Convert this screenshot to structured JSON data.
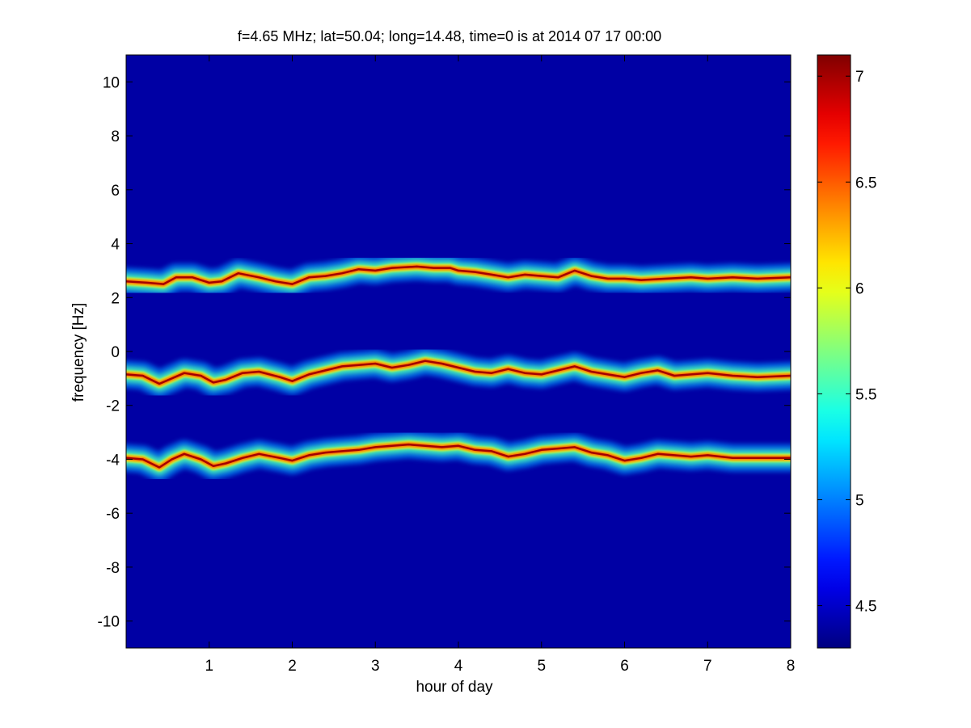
{
  "chart_data": {
    "type": "heatmap",
    "title": "f=4.65 MHz;  lat=50.04; long=14.48, time=0 is at 2014 07 17 00:00",
    "xlabel": "hour of day",
    "ylabel": "frequency [Hz]",
    "xlim": [
      0,
      8
    ],
    "ylim": [
      -11,
      11
    ],
    "x_ticks": [
      1,
      2,
      3,
      4,
      5,
      6,
      7,
      8
    ],
    "x_tick_labels": [
      "1",
      "2",
      "3",
      "4",
      "5",
      "6",
      "7",
      "8"
    ],
    "y_ticks": [
      10,
      8,
      6,
      4,
      2,
      0,
      -2,
      -4,
      -6,
      -8,
      -10
    ],
    "y_tick_labels": [
      "10",
      "8",
      "6",
      "4",
      "2",
      "0",
      "-2",
      "-4",
      "-6",
      "-8",
      "-10"
    ],
    "colorbar": {
      "colormap": "jet",
      "clim": [
        4.3,
        7.1
      ],
      "ticks": [
        7,
        6.5,
        6,
        5.5,
        5,
        4.5
      ],
      "tick_labels": [
        "7",
        "6.5",
        "6",
        "5.5",
        "5",
        "4.5"
      ]
    },
    "background_value": 4.4,
    "grid": false,
    "traces": [
      {
        "name": "",
        "points": [
          [
            0,
            2.6
          ],
          [
            0.25,
            2.55
          ],
          [
            0.45,
            2.5
          ],
          [
            0.6,
            2.75
          ],
          [
            0.8,
            2.75
          ],
          [
            1.0,
            2.55
          ],
          [
            1.15,
            2.6
          ],
          [
            1.35,
            2.9
          ],
          [
            1.6,
            2.75
          ],
          [
            1.8,
            2.6
          ],
          [
            2.0,
            2.5
          ],
          [
            2.2,
            2.75
          ],
          [
            2.4,
            2.8
          ],
          [
            2.6,
            2.9
          ],
          [
            2.8,
            3.05
          ],
          [
            3.0,
            3.0
          ],
          [
            3.2,
            3.1
          ],
          [
            3.5,
            3.15
          ],
          [
            3.7,
            3.1
          ],
          [
            3.9,
            3.1
          ],
          [
            4.0,
            3.0
          ],
          [
            4.2,
            2.95
          ],
          [
            4.4,
            2.85
          ],
          [
            4.6,
            2.75
          ],
          [
            4.8,
            2.85
          ],
          [
            5.0,
            2.8
          ],
          [
            5.2,
            2.75
          ],
          [
            5.4,
            3.0
          ],
          [
            5.6,
            2.8
          ],
          [
            5.8,
            2.7
          ],
          [
            6.0,
            2.7
          ],
          [
            6.2,
            2.65
          ],
          [
            6.5,
            2.7
          ],
          [
            6.8,
            2.75
          ],
          [
            7.0,
            2.7
          ],
          [
            7.3,
            2.75
          ],
          [
            7.6,
            2.7
          ],
          [
            8.0,
            2.75
          ]
        ]
      },
      {
        "name": "",
        "points": [
          [
            0,
            -0.85
          ],
          [
            0.2,
            -0.9
          ],
          [
            0.4,
            -1.2
          ],
          [
            0.55,
            -1.0
          ],
          [
            0.7,
            -0.8
          ],
          [
            0.9,
            -0.9
          ],
          [
            1.05,
            -1.15
          ],
          [
            1.2,
            -1.05
          ],
          [
            1.4,
            -0.8
          ],
          [
            1.6,
            -0.75
          ],
          [
            1.85,
            -0.95
          ],
          [
            2.0,
            -1.1
          ],
          [
            2.2,
            -0.85
          ],
          [
            2.4,
            -0.7
          ],
          [
            2.6,
            -0.55
          ],
          [
            2.8,
            -0.5
          ],
          [
            3.0,
            -0.45
          ],
          [
            3.2,
            -0.6
          ],
          [
            3.4,
            -0.5
          ],
          [
            3.6,
            -0.35
          ],
          [
            3.8,
            -0.45
          ],
          [
            4.0,
            -0.6
          ],
          [
            4.2,
            -0.75
          ],
          [
            4.4,
            -0.8
          ],
          [
            4.6,
            -0.65
          ],
          [
            4.8,
            -0.8
          ],
          [
            5.0,
            -0.85
          ],
          [
            5.2,
            -0.7
          ],
          [
            5.4,
            -0.55
          ],
          [
            5.6,
            -0.75
          ],
          [
            5.8,
            -0.85
          ],
          [
            6.0,
            -0.95
          ],
          [
            6.2,
            -0.8
          ],
          [
            6.4,
            -0.7
          ],
          [
            6.6,
            -0.9
          ],
          [
            6.8,
            -0.85
          ],
          [
            7.0,
            -0.8
          ],
          [
            7.3,
            -0.9
          ],
          [
            7.6,
            -0.95
          ],
          [
            8.0,
            -0.9
          ]
        ]
      },
      {
        "name": "",
        "points": [
          [
            0,
            -3.95
          ],
          [
            0.2,
            -4.0
          ],
          [
            0.4,
            -4.3
          ],
          [
            0.55,
            -4.0
          ],
          [
            0.7,
            -3.8
          ],
          [
            0.9,
            -4.0
          ],
          [
            1.05,
            -4.25
          ],
          [
            1.2,
            -4.15
          ],
          [
            1.4,
            -3.95
          ],
          [
            1.6,
            -3.8
          ],
          [
            1.85,
            -3.95
          ],
          [
            2.0,
            -4.05
          ],
          [
            2.2,
            -3.85
          ],
          [
            2.4,
            -3.75
          ],
          [
            2.6,
            -3.7
          ],
          [
            2.8,
            -3.65
          ],
          [
            3.0,
            -3.55
          ],
          [
            3.2,
            -3.5
          ],
          [
            3.4,
            -3.45
          ],
          [
            3.6,
            -3.5
          ],
          [
            3.8,
            -3.55
          ],
          [
            4.0,
            -3.5
          ],
          [
            4.2,
            -3.65
          ],
          [
            4.4,
            -3.7
          ],
          [
            4.6,
            -3.9
          ],
          [
            4.8,
            -3.8
          ],
          [
            5.0,
            -3.65
          ],
          [
            5.2,
            -3.6
          ],
          [
            5.4,
            -3.55
          ],
          [
            5.6,
            -3.75
          ],
          [
            5.8,
            -3.85
          ],
          [
            6.0,
            -4.05
          ],
          [
            6.2,
            -3.95
          ],
          [
            6.4,
            -3.8
          ],
          [
            6.6,
            -3.85
          ],
          [
            6.8,
            -3.9
          ],
          [
            7.0,
            -3.85
          ],
          [
            7.3,
            -3.95
          ],
          [
            7.6,
            -3.95
          ],
          [
            8.0,
            -3.95
          ]
        ]
      }
    ]
  }
}
